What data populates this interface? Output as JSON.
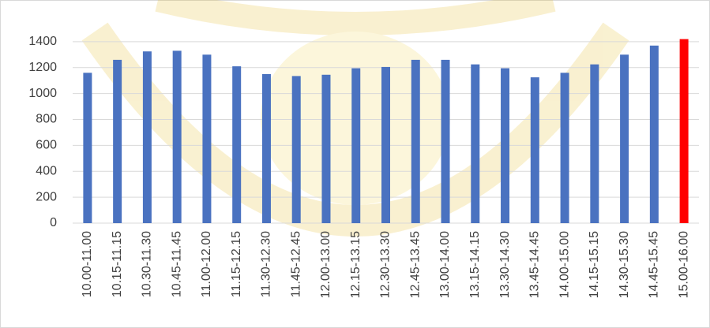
{
  "chart_data": {
    "type": "bar",
    "categories": [
      "10.00-11.00",
      "10.15-11.15",
      "10.30-11.30",
      "10.45-11.45",
      "11.00-12.00",
      "11.15-12.15",
      "11.30-12.30",
      "11.45-12.45",
      "12.00-13.00",
      "12.15-13.15",
      "12.30-13.30",
      "12.45-13.45",
      "13.00-14.00",
      "13.15-14.15",
      "13.30-14.30",
      "13.45-14.45",
      "14.00-15.00",
      "14.15-15.15",
      "14.30-15.30",
      "14.45-15.45",
      "15.00-16.00"
    ],
    "values": [
      1160,
      1260,
      1325,
      1330,
      1300,
      1210,
      1150,
      1135,
      1145,
      1195,
      1205,
      1260,
      1260,
      1225,
      1195,
      1125,
      1160,
      1225,
      1300,
      1370,
      1420
    ],
    "colors": [
      "#4a72c0",
      "#4a72c0",
      "#4a72c0",
      "#4a72c0",
      "#4a72c0",
      "#4a72c0",
      "#4a72c0",
      "#4a72c0",
      "#4a72c0",
      "#4a72c0",
      "#4a72c0",
      "#4a72c0",
      "#4a72c0",
      "#4a72c0",
      "#4a72c0",
      "#4a72c0",
      "#4a72c0",
      "#4a72c0",
      "#4a72c0",
      "#4a72c0",
      "#ff0000"
    ],
    "ylim": [
      0,
      1600
    ],
    "yticks": [
      0,
      200,
      400,
      600,
      800,
      1000,
      1200,
      1400
    ],
    "grid": true
  }
}
